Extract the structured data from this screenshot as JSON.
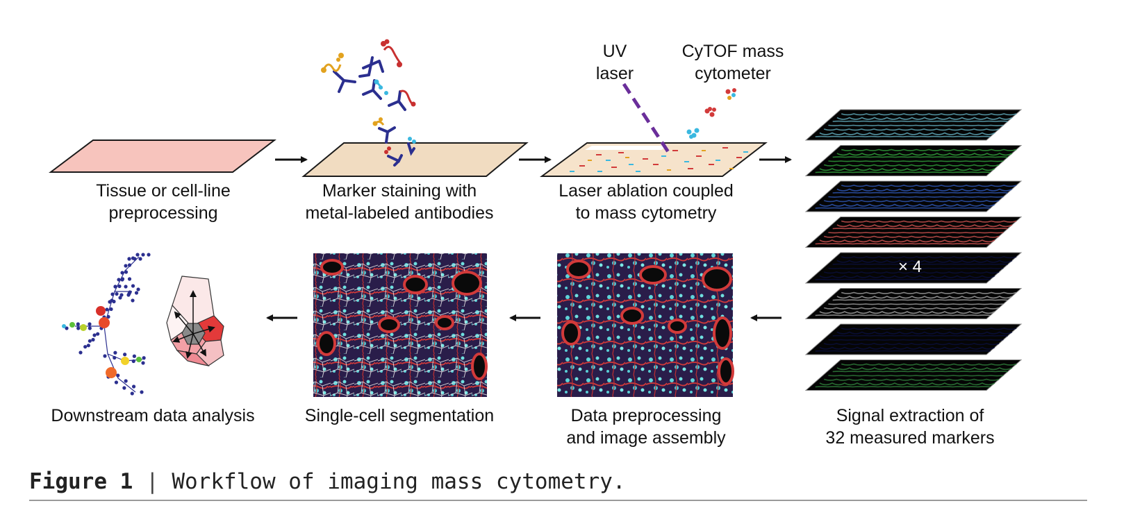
{
  "steps": {
    "s1": {
      "line1": "Tissue or cell-line",
      "line2": "preprocessing"
    },
    "s2": {
      "line1": "Marker staining with",
      "line2": "metal-labeled antibodies"
    },
    "s3": {
      "line1": "Laser ablation coupled",
      "line2": "to mass cytometry"
    },
    "s4": {
      "line1": "Signal extraction of",
      "line2": "32 measured  markers"
    },
    "s5": {
      "line1": "Data preprocessing",
      "line2": "and image assembly"
    },
    "s6": {
      "line1": "Single-cell segmentation"
    },
    "s7": {
      "line1": "Downstream data analysis"
    }
  },
  "uv": {
    "line1": "UV",
    "line2": "laser"
  },
  "cytof": {
    "line1": "CyTOF mass",
    "line2": "cytometer"
  },
  "stack_multiplier": "× 4",
  "caption": {
    "figure": "Figure 1",
    "separator": "|",
    "text": "Workflow of imaging mass cytometry."
  },
  "layer_colors": [
    "#5fa8b8",
    "#2f9a3a",
    "#2e55b0",
    "#c8504e",
    "#0b0f3a",
    "#9a9a9a",
    "#0b0f3a",
    "#2e7a3a"
  ],
  "colors": {
    "tissue_pink": "#f7c4bd",
    "stain_beige": "#f1dcc1",
    "antibody_blue": "#2b2f8f",
    "laser_purple": "#6a2e9a"
  }
}
